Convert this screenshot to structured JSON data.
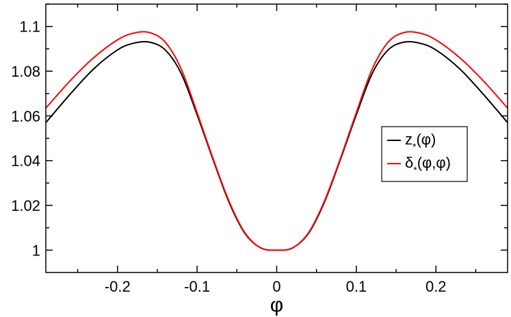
{
  "chart_data": {
    "type": "line",
    "title": "",
    "xlabel": "φ",
    "ylabel": "",
    "xlim": [
      -0.29,
      0.29
    ],
    "ylim": [
      0.99,
      1.11
    ],
    "xticks": [
      -0.2,
      -0.1,
      0,
      0.1,
      0.2
    ],
    "xtick_labels": [
      "-0.2",
      "-0.1",
      "0",
      "0.1",
      "0.2"
    ],
    "yticks": [
      1.0,
      1.02,
      1.04,
      1.06,
      1.08,
      1.1
    ],
    "ytick_labels": [
      "1",
      "1.02",
      "1.04",
      "1.06",
      "1.08",
      "1.1"
    ],
    "grid": false,
    "legend_position": "right",
    "series": [
      {
        "name": "z*(φ)",
        "legend": {
          "main": "z",
          "sub": "*",
          "tail": "(φ)"
        },
        "color": "#000000",
        "x": [
          -0.29,
          -0.26,
          -0.23,
          -0.2,
          -0.18,
          -0.16,
          -0.14,
          -0.12,
          -0.1,
          -0.08,
          -0.06,
          -0.04,
          -0.02,
          0,
          0.02,
          0.04,
          0.06,
          0.08,
          0.1,
          0.12,
          0.14,
          0.16,
          0.18,
          0.2,
          0.23,
          0.26,
          0.29
        ],
        "y": [
          1.057,
          1.0695,
          1.081,
          1.0895,
          1.0925,
          1.093,
          1.0895,
          1.079,
          1.0605,
          1.0405,
          1.0215,
          1.0075,
          1.001,
          1.0,
          1.001,
          1.0075,
          1.0215,
          1.0405,
          1.0605,
          1.079,
          1.0895,
          1.093,
          1.0925,
          1.0895,
          1.081,
          1.0695,
          1.057
        ]
      },
      {
        "name": "δ*(φ,φ)",
        "legend": {
          "main": "δ",
          "sub": "*",
          "tail": "(φ,φ)"
        },
        "color": "#ff0000",
        "x": [
          -0.29,
          -0.26,
          -0.23,
          -0.2,
          -0.18,
          -0.16,
          -0.14,
          -0.12,
          -0.1,
          -0.08,
          -0.06,
          -0.04,
          -0.02,
          0,
          0.02,
          0.04,
          0.06,
          0.08,
          0.1,
          0.12,
          0.14,
          0.16,
          0.18,
          0.2,
          0.23,
          0.26,
          0.29
        ],
        "y": [
          1.0635,
          1.0755,
          1.086,
          1.094,
          1.097,
          1.0973,
          1.093,
          1.081,
          1.0615,
          1.041,
          1.022,
          1.0078,
          1.001,
          1.0,
          1.001,
          1.0078,
          1.022,
          1.041,
          1.0615,
          1.081,
          1.093,
          1.0973,
          1.097,
          1.094,
          1.086,
          1.0755,
          1.0635
        ]
      }
    ]
  }
}
